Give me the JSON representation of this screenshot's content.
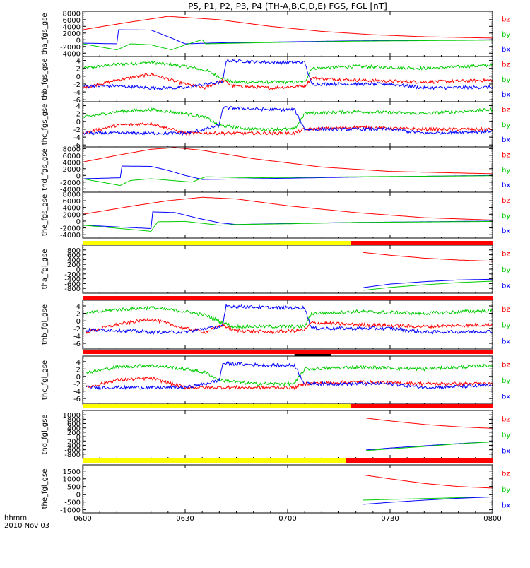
{
  "title": "P5, P1, P2, P3, P4 (TH-A,B,C,D,E) FGS, FGL [nT]",
  "time_axis": {
    "ticks": [
      "0600",
      "0630",
      "0700",
      "0730",
      "0800"
    ],
    "label": "hhmm",
    "date": "2010 Nov 03"
  },
  "colors": {
    "bz": "#ff0000",
    "by": "#00cc00",
    "bx": "#0000ff",
    "yellow": "#ffff00",
    "red": "#ff0000",
    "black": "#000000"
  },
  "chart_data": [
    {
      "type": "line",
      "ylabel": "tha_fgs_gse",
      "ylim": [
        -5000,
        8500
      ],
      "yticks": [
        "8000",
        "6000",
        "4000",
        "2000",
        "0",
        "-2000",
        "-4000"
      ],
      "ytick_values": [
        8000,
        6000,
        4000,
        2000,
        0,
        -2000,
        -4000
      ],
      "legend": [
        "bz",
        "by",
        "bx"
      ],
      "style": "smooth",
      "series": [
        {
          "name": "bz",
          "color": "#ff0000",
          "x": [
            0,
            12,
            25,
            40,
            55,
            70,
            85,
            100,
            120
          ],
          "y": [
            3000,
            5000,
            7000,
            6000,
            4000,
            2500,
            1500,
            900,
            500
          ]
        },
        {
          "name": "bx",
          "color": "#0000ff",
          "x": [
            0,
            10,
            10.5,
            20,
            26,
            30,
            40,
            60,
            80,
            120
          ],
          "y": [
            -1000,
            -1200,
            3000,
            2900,
            500,
            -1200,
            -900,
            -600,
            -300,
            0
          ]
        },
        {
          "name": "by",
          "color": "#00cc00",
          "x": [
            0,
            10,
            14,
            20,
            26,
            30,
            35,
            36,
            50,
            80,
            120
          ],
          "y": [
            -1200,
            -3000,
            -1200,
            -1500,
            -3000,
            -1500,
            0,
            -1200,
            -900,
            -400,
            -100
          ]
        }
      ]
    },
    {
      "type": "line",
      "ylabel": "thb_fgs_gse",
      "ylim": [
        -6.5,
        5
      ],
      "yticks": [
        "4",
        "2",
        "0",
        "-2",
        "-4",
        "-6"
      ],
      "ytick_values": [
        4,
        2,
        0,
        -2,
        -4,
        -6
      ],
      "legend": [
        "bz",
        "by",
        "bx"
      ],
      "style": "noisy",
      "series": [
        {
          "name": "by",
          "color": "#00cc00",
          "x": [
            0,
            10,
            20,
            30,
            36,
            41,
            44,
            55,
            65,
            67,
            80,
            100,
            120
          ],
          "y": [
            2,
            3,
            3.5,
            2.5,
            1.5,
            -0.5,
            -1.5,
            -1.5,
            -1.5,
            2,
            2.5,
            2,
            2.8
          ]
        },
        {
          "name": "bz",
          "color": "#ff0000",
          "x": [
            0,
            10,
            20,
            30,
            36,
            41,
            44,
            55,
            65,
            67,
            80,
            100,
            120
          ],
          "y": [
            -3,
            -1,
            0.5,
            -2,
            -3,
            -1,
            -2.5,
            -3,
            -2.5,
            -0.5,
            -1,
            -1.5,
            -1
          ]
        },
        {
          "name": "bx",
          "color": "#0000ff",
          "x": [
            0,
            10,
            20,
            30,
            36,
            41,
            42,
            55,
            65,
            67,
            90,
            100,
            120
          ],
          "y": [
            -2.5,
            -2.5,
            -3,
            -3,
            -2,
            -1.5,
            4,
            3.5,
            3.5,
            -2,
            -2,
            -3,
            -2.8
          ]
        }
      ]
    },
    {
      "type": "line",
      "ylabel": "thc_fgs_gse",
      "ylim": [
        -6.5,
        5
      ],
      "yticks": [
        "4",
        "2",
        "0",
        "-2",
        "-4",
        "-6"
      ],
      "ytick_values": [
        4,
        2,
        0,
        -2,
        -4,
        -6
      ],
      "legend": [
        "bz",
        "by",
        "bx"
      ],
      "style": "noisy",
      "series": [
        {
          "name": "by",
          "color": "#00cc00",
          "x": [
            0,
            10,
            20,
            30,
            36,
            40,
            50,
            62,
            65,
            80,
            100,
            120
          ],
          "y": [
            1,
            2.5,
            3,
            2,
            1,
            -1,
            -2,
            -2,
            2,
            2.5,
            2,
            3
          ]
        },
        {
          "name": "bz",
          "color": "#ff0000",
          "x": [
            0,
            10,
            20,
            30,
            36,
            40,
            50,
            62,
            65,
            80,
            100,
            120
          ],
          "y": [
            -3,
            -1,
            -0.5,
            -3,
            -3,
            -3,
            -3,
            -3,
            -2,
            -1.5,
            -2,
            -2
          ]
        },
        {
          "name": "bx",
          "color": "#0000ff",
          "x": [
            0,
            10,
            20,
            30,
            36,
            40,
            41,
            55,
            62,
            65,
            90,
            100,
            120
          ],
          "y": [
            -3,
            -3,
            -3,
            -3,
            -2,
            -1,
            3.5,
            3,
            3,
            -2,
            -2,
            -3,
            -2.5
          ]
        }
      ]
    },
    {
      "type": "line",
      "ylabel": "thd_fgs_gse",
      "ylim": [
        -5000,
        8500
      ],
      "yticks": [
        "8000",
        "6000",
        "4000",
        "2000",
        "0",
        "-2000",
        "-4000"
      ],
      "ytick_values": [
        8000,
        6000,
        4000,
        2000,
        0,
        -2000,
        -4000
      ],
      "legend": [
        "bz",
        "by",
        "bx"
      ],
      "style": "smooth",
      "series": [
        {
          "name": "bz",
          "color": "#ff0000",
          "x": [
            0,
            10,
            20,
            27,
            35,
            50,
            70,
            90,
            120
          ],
          "y": [
            4000,
            6000,
            7800,
            8300,
            7500,
            5000,
            2500,
            1200,
            500
          ]
        },
        {
          "name": "bx",
          "color": "#0000ff",
          "x": [
            0,
            11,
            11.5,
            20,
            25,
            30,
            35,
            50,
            80,
            120
          ],
          "y": [
            -1000,
            -700,
            2800,
            2700,
            1500,
            0,
            -1200,
            -1000,
            -500,
            0
          ]
        },
        {
          "name": "by",
          "color": "#00cc00",
          "x": [
            0,
            11,
            14,
            20,
            26,
            32,
            36,
            50,
            80,
            120
          ],
          "y": [
            -1000,
            -3000,
            -1500,
            -1000,
            -1500,
            -2000,
            -400,
            -700,
            -400,
            -100
          ]
        }
      ]
    },
    {
      "type": "line",
      "ylabel": "the_fgs_gse",
      "ylim": [
        -5000,
        8500
      ],
      "yticks": [
        "8000",
        "6000",
        "4000",
        "2000",
        "0",
        "-2000",
        "-4000"
      ],
      "ytick_values": [
        8000,
        6000,
        4000,
        2000,
        0,
        -2000,
        -4000
      ],
      "legend": [
        "bz",
        "by",
        "bx"
      ],
      "style": "smooth",
      "series": [
        {
          "name": "bz",
          "color": "#ff0000",
          "x": [
            0,
            15,
            25,
            35,
            45,
            60,
            80,
            100,
            120
          ],
          "y": [
            2000,
            4500,
            6000,
            7000,
            6500,
            4500,
            2500,
            1000,
            300
          ]
        },
        {
          "name": "bx",
          "color": "#0000ff",
          "x": [
            0,
            20,
            20.5,
            27,
            33,
            40,
            45,
            60,
            80,
            120
          ],
          "y": [
            -1200,
            -2200,
            2700,
            2500,
            1000,
            -500,
            -1000,
            -700,
            -400,
            0
          ]
        },
        {
          "name": "by",
          "color": "#00cc00",
          "x": [
            0,
            20,
            22,
            30,
            40,
            45,
            60,
            80,
            120
          ],
          "y": [
            -1200,
            -3000,
            -200,
            -100,
            -1200,
            -1000,
            -800,
            -400,
            -100
          ]
        }
      ]
    },
    {
      "type": "line",
      "ylabel": "tha_fgl_gse",
      "ylim": [
        -1000,
        1000
      ],
      "yticks": [
        "800",
        "600",
        "400",
        "200",
        "0",
        "-200",
        "-400",
        "-600",
        "-800"
      ],
      "ytick_values": [
        800,
        600,
        400,
        200,
        0,
        -200,
        -400,
        -600,
        -800
      ],
      "legend": [
        "bz",
        "by",
        "bx"
      ],
      "style": "smooth",
      "series": [
        {
          "name": "bz",
          "color": "#ff0000",
          "x": [
            82,
            90,
            100,
            110,
            120
          ],
          "y": [
            700,
            580,
            460,
            380,
            330
          ]
        },
        {
          "name": "bx",
          "color": "#0000ff",
          "x": [
            82,
            90,
            100,
            110,
            120
          ],
          "y": [
            -770,
            -620,
            -520,
            -450,
            -420
          ]
        },
        {
          "name": "by",
          "color": "#00cc00",
          "x": [
            82,
            90,
            100,
            110,
            120
          ],
          "y": [
            -880,
            -760,
            -650,
            -560,
            -500
          ]
        }
      ]
    },
    {
      "type": "line",
      "ylabel": "thb_fgl_gse",
      "ylim": [
        -7.5,
        5.5
      ],
      "yticks": [
        "4",
        "2",
        "0",
        "-2",
        "-4",
        "-6"
      ],
      "ytick_values": [
        4,
        2,
        0,
        -2,
        -4,
        -6
      ],
      "legend": [
        "bz",
        "by",
        "bx"
      ],
      "style": "noisy",
      "series": [
        {
          "name": "by",
          "color": "#00cc00",
          "x": [
            1,
            10,
            20,
            30,
            36,
            41,
            44,
            55,
            65,
            67,
            80,
            100,
            120
          ],
          "y": [
            2,
            3,
            3.5,
            2.5,
            1.5,
            -0.5,
            -1.5,
            -1.5,
            -1.5,
            2,
            2.5,
            2,
            2.8
          ]
        },
        {
          "name": "bz",
          "color": "#ff0000",
          "x": [
            1,
            10,
            20,
            30,
            36,
            41,
            44,
            55,
            65,
            67,
            80,
            100,
            120
          ],
          "y": [
            -3,
            -1,
            0.5,
            -2,
            -3,
            -1,
            -2.5,
            -3,
            -2.5,
            -0.5,
            -1,
            -1.5,
            -1
          ]
        },
        {
          "name": "bx",
          "color": "#0000ff",
          "x": [
            1,
            10,
            20,
            30,
            36,
            41,
            42,
            55,
            65,
            67,
            90,
            100,
            120
          ],
          "y": [
            -2.5,
            -2.5,
            -3,
            -3,
            -2,
            -1.5,
            4,
            3.5,
            3.5,
            -2,
            -2,
            -3,
            -2.8
          ]
        }
      ]
    },
    {
      "type": "line",
      "ylabel": "thc_fgl_gse",
      "ylim": [
        -7.5,
        5.5
      ],
      "yticks": [
        "4",
        "2",
        "0",
        "-2",
        "-4",
        "-6"
      ],
      "ytick_values": [
        4,
        2,
        0,
        -2,
        -4,
        -6
      ],
      "legend": [
        "bz",
        "by",
        "bx"
      ],
      "style": "noisy",
      "series": [
        {
          "name": "by",
          "color": "#00cc00",
          "x": [
            1,
            10,
            20,
            30,
            36,
            40,
            50,
            62,
            65,
            80,
            100,
            120
          ],
          "y": [
            1,
            2.5,
            3,
            2,
            1,
            -1,
            -2,
            -2,
            2,
            2.5,
            2,
            3
          ]
        },
        {
          "name": "bz",
          "color": "#ff0000",
          "x": [
            1,
            10,
            20,
            30,
            36,
            40,
            50,
            62,
            65,
            80,
            100,
            120
          ],
          "y": [
            -3,
            -1,
            -0.5,
            -3,
            -3,
            -3,
            -3,
            -3,
            -2,
            -1.5,
            -2,
            -2
          ]
        },
        {
          "name": "bx",
          "color": "#0000ff",
          "x": [
            1,
            10,
            20,
            30,
            36,
            40,
            41,
            55,
            62,
            65,
            90,
            100,
            120
          ],
          "y": [
            -3,
            -3,
            -3,
            -3,
            -2,
            -1,
            3.5,
            3,
            3,
            -2,
            -2,
            -3,
            -2.5
          ]
        }
      ]
    },
    {
      "type": "line",
      "ylabel": "thd_fgl_gse",
      "ylim": [
        -1000,
        1200
      ],
      "yticks": [
        "1000",
        "800",
        "600",
        "400",
        "200",
        "0",
        "-200",
        "-400",
        "-600",
        "-800"
      ],
      "ytick_values": [
        1000,
        800,
        600,
        400,
        200,
        0,
        -200,
        -400,
        -600,
        -800
      ],
      "legend": [
        "bz",
        "by",
        "bx"
      ],
      "style": "smooth",
      "series": [
        {
          "name": "bz",
          "color": "#ff0000",
          "x": [
            83,
            90,
            100,
            110,
            120
          ],
          "y": [
            850,
            720,
            560,
            450,
            380
          ]
        },
        {
          "name": "bx",
          "color": "#0000ff",
          "x": [
            83,
            90,
            100,
            110,
            120
          ],
          "y": [
            -610,
            -520,
            -420,
            -320,
            -230
          ]
        },
        {
          "name": "by",
          "color": "#00cc00",
          "x": [
            83,
            90,
            100,
            110,
            120
          ],
          "y": [
            -640,
            -560,
            -450,
            -330,
            -240
          ]
        }
      ]
    },
    {
      "type": "line",
      "ylabel": "the_fgl_gse",
      "ylim": [
        -1200,
        1900
      ],
      "yticks": [
        "1500",
        "1000",
        "500",
        "0",
        "-500",
        "-1000"
      ],
      "ytick_values": [
        1500,
        1000,
        500,
        0,
        -500,
        -1000
      ],
      "legend": [
        "bz",
        "by",
        "bx"
      ],
      "style": "smooth",
      "series": [
        {
          "name": "bz",
          "color": "#ff0000",
          "x": [
            82,
            90,
            100,
            110,
            120
          ],
          "y": [
            1250,
            1000,
            700,
            500,
            400
          ]
        },
        {
          "name": "by",
          "color": "#00cc00",
          "x": [
            82,
            90,
            100,
            110,
            120
          ],
          "y": [
            -380,
            -330,
            -280,
            -220,
            -170
          ]
        },
        {
          "name": "bx",
          "color": "#0000ff",
          "x": [
            82,
            90,
            100,
            110,
            120
          ],
          "y": [
            -650,
            -520,
            -380,
            -260,
            -170
          ]
        }
      ]
    }
  ],
  "mode_bars": [
    {
      "segments": [
        {
          "color": "#ffff00",
          "from": 0,
          "to": 78.6
        },
        {
          "color": "#ff0000",
          "from": 78.6,
          "to": 120
        }
      ]
    },
    {
      "segments": [
        {
          "color": "#ff0000",
          "from": 0,
          "to": 120
        }
      ]
    },
    {
      "segments": [
        {
          "color": "#ff0000",
          "from": 0,
          "to": 120
        }
      ]
    },
    {
      "segments": [
        {
          "color": "#ffff00",
          "from": 0,
          "to": 78.4
        },
        {
          "color": "#ff0000",
          "from": 78.4,
          "to": 120
        }
      ]
    },
    {
      "segments": [
        {
          "color": "#ffff00",
          "from": 0,
          "to": 77.0
        },
        {
          "color": "#ff0000",
          "from": 77.0,
          "to": 120
        }
      ]
    }
  ],
  "marker_bar": {
    "color": "#000000",
    "from": 62.0,
    "to": 72.8
  }
}
